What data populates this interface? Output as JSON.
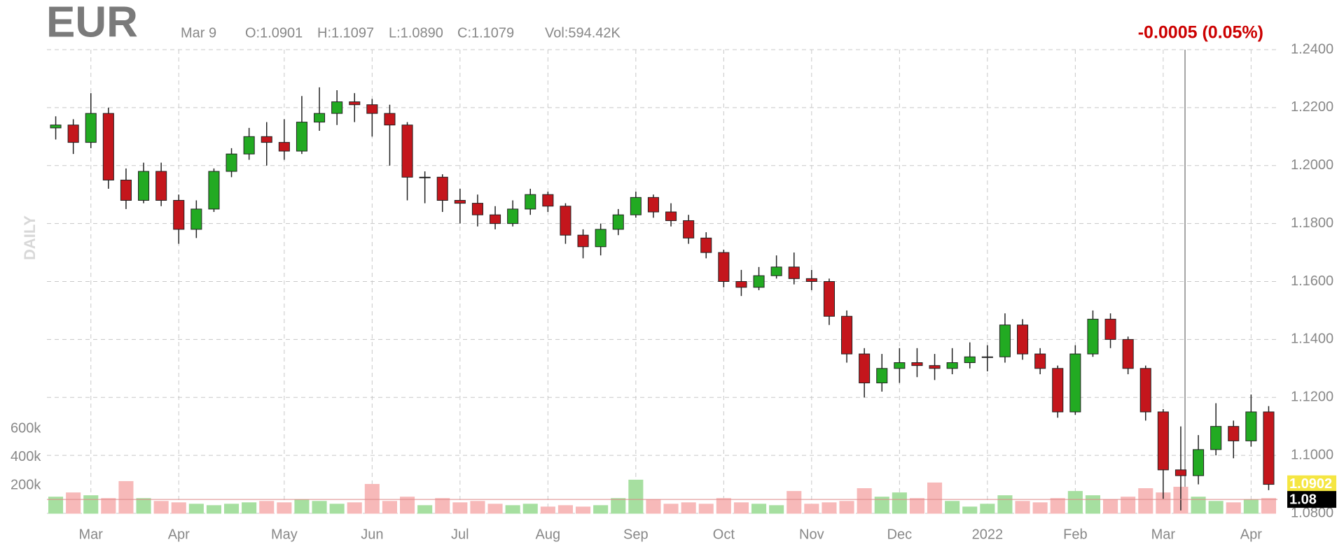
{
  "chart_data": {
    "type": "candlestick",
    "title": "EUR",
    "side_label": "DAILY",
    "header": {
      "date": "Mar 9",
      "open": "O:1.0901",
      "high": "H:1.1097",
      "low": "L:1.0890",
      "close": "C:1.1079",
      "volume": "Vol:594.42K"
    },
    "change": "-0.0005 (0.05%)",
    "change_color": "#cc0000",
    "categories": [
      null,
      null,
      "Mar",
      null,
      null,
      null,
      null,
      "Apr",
      null,
      null,
      null,
      null,
      null,
      "May",
      null,
      null,
      null,
      null,
      "Jun",
      null,
      null,
      null,
      null,
      "Jul",
      null,
      null,
      null,
      null,
      "Aug",
      null,
      null,
      null,
      null,
      "Sep",
      null,
      null,
      null,
      null,
      "Oct",
      null,
      null,
      null,
      null,
      "Nov",
      null,
      null,
      null,
      null,
      "Dec",
      null,
      null,
      null,
      null,
      "2022",
      null,
      null,
      null,
      null,
      "Feb",
      null,
      null,
      null,
      null,
      "Mar",
      null,
      null,
      null,
      null,
      "Apr",
      null
    ],
    "open": [
      1.213,
      1.214,
      1.208,
      1.218,
      1.195,
      1.188,
      1.198,
      1.188,
      1.178,
      1.185,
      1.198,
      1.204,
      1.21,
      1.208,
      1.205,
      1.215,
      1.218,
      1.222,
      1.221,
      1.218,
      1.214,
      1.196,
      1.196,
      1.188,
      1.187,
      1.183,
      1.18,
      1.185,
      1.19,
      1.186,
      1.176,
      1.172,
      1.178,
      1.183,
      1.189,
      1.184,
      1.181,
      1.175,
      1.17,
      1.16,
      1.158,
      1.162,
      1.165,
      1.161,
      1.16,
      1.148,
      1.135,
      1.125,
      1.13,
      1.132,
      1.131,
      1.13,
      1.132,
      1.134,
      1.134,
      1.145,
      1.135,
      1.13,
      1.115,
      1.135,
      1.147,
      1.14,
      1.13,
      1.115,
      1.095,
      1.093,
      1.102,
      1.11,
      1.105,
      1.115
    ],
    "high": [
      1.217,
      1.216,
      1.225,
      1.22,
      1.199,
      1.201,
      1.201,
      1.19,
      1.188,
      1.199,
      1.206,
      1.213,
      1.215,
      1.216,
      1.224,
      1.227,
      1.226,
      1.225,
      1.223,
      1.221,
      1.215,
      1.198,
      1.197,
      1.192,
      1.19,
      1.186,
      1.188,
      1.192,
      1.191,
      1.187,
      1.178,
      1.18,
      1.185,
      1.191,
      1.19,
      1.187,
      1.183,
      1.177,
      1.171,
      1.164,
      1.165,
      1.169,
      1.17,
      1.164,
      1.161,
      1.15,
      1.137,
      1.135,
      1.137,
      1.137,
      1.135,
      1.137,
      1.139,
      1.138,
      1.149,
      1.147,
      1.137,
      1.131,
      1.138,
      1.15,
      1.149,
      1.141,
      1.131,
      1.116,
      1.11,
      1.107,
      1.118,
      1.112,
      1.121,
      1.117
    ],
    "low": [
      1.209,
      1.204,
      1.206,
      1.192,
      1.185,
      1.187,
      1.186,
      1.173,
      1.175,
      1.184,
      1.196,
      1.202,
      1.2,
      1.202,
      1.204,
      1.212,
      1.214,
      1.215,
      1.21,
      1.2,
      1.188,
      1.187,
      1.184,
      1.18,
      1.179,
      1.178,
      1.179,
      1.183,
      1.184,
      1.173,
      1.168,
      1.169,
      1.176,
      1.182,
      1.182,
      1.179,
      1.173,
      1.168,
      1.158,
      1.155,
      1.157,
      1.161,
      1.159,
      1.157,
      1.145,
      1.132,
      1.12,
      1.122,
      1.125,
      1.127,
      1.126,
      1.128,
      1.13,
      1.129,
      1.132,
      1.133,
      1.128,
      1.113,
      1.114,
      1.134,
      1.137,
      1.128,
      1.112,
      1.085,
      1.081,
      1.09,
      1.1,
      1.099,
      1.103,
      1.088
    ],
    "close": [
      1.214,
      1.208,
      1.218,
      1.195,
      1.188,
      1.198,
      1.188,
      1.178,
      1.185,
      1.198,
      1.204,
      1.21,
      1.208,
      1.205,
      1.215,
      1.218,
      1.222,
      1.221,
      1.218,
      1.214,
      1.196,
      1.196,
      1.188,
      1.187,
      1.183,
      1.18,
      1.185,
      1.19,
      1.186,
      1.176,
      1.172,
      1.178,
      1.183,
      1.189,
      1.184,
      1.181,
      1.175,
      1.17,
      1.16,
      1.158,
      1.162,
      1.165,
      1.161,
      1.16,
      1.148,
      1.135,
      1.125,
      1.13,
      1.132,
      1.131,
      1.13,
      1.132,
      1.134,
      1.134,
      1.145,
      1.135,
      1.13,
      1.115,
      1.135,
      1.147,
      1.14,
      1.13,
      1.115,
      1.095,
      1.093,
      1.102,
      1.11,
      1.105,
      1.115,
      1.09
    ],
    "volume": [
      120000,
      150000,
      130000,
      110000,
      230000,
      110000,
      90000,
      80000,
      70000,
      60000,
      70000,
      80000,
      90000,
      80000,
      100000,
      90000,
      70000,
      80000,
      210000,
      90000,
      120000,
      60000,
      110000,
      80000,
      90000,
      70000,
      60000,
      70000,
      50000,
      60000,
      50000,
      60000,
      110000,
      240000,
      100000,
      70000,
      80000,
      70000,
      110000,
      80000,
      70000,
      60000,
      160000,
      70000,
      80000,
      90000,
      180000,
      120000,
      150000,
      110000,
      220000,
      90000,
      50000,
      70000,
      130000,
      90000,
      80000,
      110000,
      160000,
      130000,
      100000,
      120000,
      180000,
      150000,
      190000,
      120000,
      90000,
      80000,
      100000,
      110000
    ],
    "up_color": "#22aa22",
    "down_color": "#c4161c",
    "volume_up_color": "#a6dfa0",
    "volume_down_color": "#f7b9b9",
    "ylim": [
      1.08,
      1.24
    ],
    "yticks": [
      {
        "value": 1.08,
        "label": "1.0800"
      },
      {
        "value": 1.1,
        "label": "1.1000"
      },
      {
        "value": 1.12,
        "label": "1.1200"
      },
      {
        "value": 1.14,
        "label": "1.1400"
      },
      {
        "value": 1.16,
        "label": "1.1600"
      },
      {
        "value": 1.18,
        "label": "1.1800"
      },
      {
        "value": 1.2,
        "label": "1.2000"
      },
      {
        "value": 1.22,
        "label": "1.2200"
      },
      {
        "value": 1.24,
        "label": "1.2400"
      }
    ],
    "volume_ylim": [
      0,
      600000
    ],
    "volume_ticks": [
      {
        "value": 200000,
        "label": "200k"
      },
      {
        "value": 400000,
        "label": "400k"
      },
      {
        "value": 600000,
        "label": "600k"
      }
    ],
    "price_labels": [
      {
        "value": 1.0902,
        "label": "1.0902",
        "color": "#f5e642",
        "text_color": "#ffffff"
      },
      {
        "value": 1.0848,
        "label": "1.08",
        "color": "#000000",
        "text_color": "#ffffff"
      }
    ],
    "grid": true
  }
}
